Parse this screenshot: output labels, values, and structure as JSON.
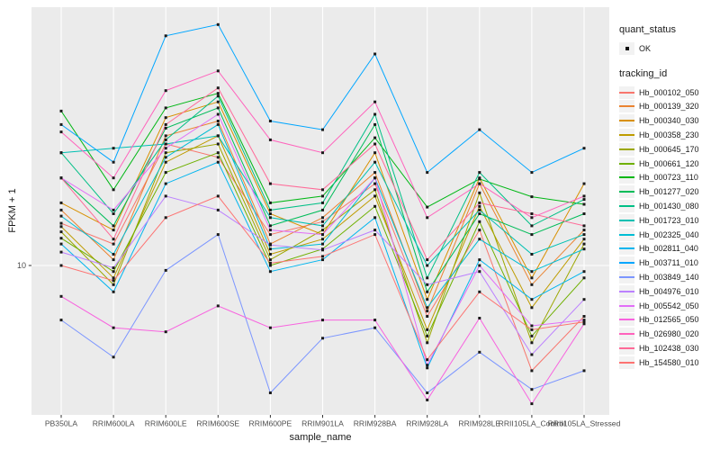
{
  "figure": {
    "background": "#FFFFFF",
    "panel_background": "#EBEBEB",
    "gridline_color": "#FFFFFF",
    "tick_color": "#333333",
    "tick_label_color": "#4D4D4D",
    "point_color": "#1A1A1A"
  },
  "legend": {
    "quant_status": {
      "title": "quant_status",
      "items": [
        {
          "label": "OK",
          "icon": "black-point-icon"
        }
      ]
    },
    "tracking_id": {
      "title": "tracking_id"
    }
  },
  "chart_data": {
    "type": "line",
    "title": "",
    "xlabel": "sample_name",
    "ylabel": "FPKM + 1",
    "y_scale": "log10",
    "y_tick_label": "10",
    "y_tick_value": 10,
    "ylim": [
      2.8,
      90
    ],
    "grid": "white-on-gray, vertical major per category, horizontal at 10",
    "legend_position": "right",
    "point_shape": "small black square (quant_status OK)",
    "categories": [
      "PB350LA",
      "RRIM600LA",
      "RRIM600LE",
      "RRIM600SE",
      "RRIM600PE",
      "RRIM901LA",
      "RRIM928BA",
      "RRIM928LA",
      "RRIM928LE",
      "RRII105LA_Control",
      "RRII105LA_Stressed"
    ],
    "series": [
      {
        "name": "Hb_000102_050",
        "color": "#F8766D",
        "values": [
          14.3,
          12.0,
          28,
          25,
          13,
          14.5,
          20,
          6.5,
          13.5,
          4.1,
          6.5
        ]
      },
      {
        "name": "Hb_000139_320",
        "color": "#EA8331",
        "values": [
          16,
          10.5,
          30,
          34,
          12,
          15,
          22,
          6.8,
          20,
          8.5,
          13.5
        ]
      },
      {
        "name": "Hb_000340_030",
        "color": "#D89000",
        "values": [
          17,
          13.5,
          35,
          40,
          15.5,
          13,
          26,
          7.5,
          21,
          9.0,
          20
        ]
      },
      {
        "name": "Hb_000358_230",
        "color": "#BE9C00",
        "values": [
          13.9,
          9.0,
          24,
          30,
          11,
          12.5,
          18,
          5.8,
          16.5,
          7.0,
          12.5
        ]
      },
      {
        "name": "Hb_000645_170",
        "color": "#9CA700",
        "values": [
          13.3,
          8.5,
          26,
          28,
          10.5,
          13.5,
          19,
          5.2,
          18.5,
          5.2,
          12.0
        ]
      },
      {
        "name": "Hb_000661_120",
        "color": "#6FB000",
        "values": [
          12.6,
          9.5,
          22,
          26,
          10,
          11.5,
          16.5,
          5.5,
          14.5,
          5.5,
          9.0
        ]
      },
      {
        "name": "Hb_000723_110",
        "color": "#00B715",
        "values": [
          37,
          19,
          38,
          43,
          17,
          18,
          29.5,
          16.4,
          20.8,
          17.9,
          16.8
        ]
      },
      {
        "name": "Hb_001277_020",
        "color": "#00BC59",
        "values": [
          21,
          14,
          32,
          38,
          14,
          16,
          33,
          8.0,
          15.5,
          13.0,
          15.5
        ]
      },
      {
        "name": "Hb_001430_080",
        "color": "#00BF86",
        "values": [
          26,
          15.5,
          29,
          42,
          16,
          17,
          36,
          9.0,
          22,
          14.0,
          17.5
        ]
      },
      {
        "name": "Hb_001723_010",
        "color": "#00C0B2",
        "values": [
          26,
          27,
          28,
          30,
          15,
          14,
          24,
          10,
          16,
          11,
          13
        ]
      },
      {
        "name": "Hb_002325_040",
        "color": "#00BDD4",
        "values": [
          15.2,
          11,
          25,
          33,
          11.5,
          12,
          21,
          7.0,
          12.5,
          9.5,
          11.5
        ]
      },
      {
        "name": "Hb_002811_040",
        "color": "#00B5EE",
        "values": [
          12,
          8.0,
          20,
          24,
          9.5,
          10.5,
          15,
          4.2,
          10.5,
          7.5,
          9.5
        ]
      },
      {
        "name": "Hb_003711_010",
        "color": "#00A6FF",
        "values": [
          33,
          24,
          70,
          77,
          34,
          31.6,
          60,
          22,
          31.6,
          22,
          27
        ]
      },
      {
        "name": "Hb_003849_140",
        "color": "#7C96FF",
        "values": [
          6.3,
          4.6,
          9.6,
          13,
          3.4,
          5.4,
          5.9,
          3.4,
          4.8,
          3.5,
          4.1
        ]
      },
      {
        "name": "Hb_004976_010",
        "color": "#BC81FF",
        "values": [
          11.2,
          9.8,
          18,
          16,
          11.9,
          11.4,
          13.5,
          8.5,
          9.5,
          4.7,
          7.5
        ]
      },
      {
        "name": "Hb_005542_050",
        "color": "#E26EF7",
        "values": [
          21,
          16,
          27,
          36,
          13.5,
          13,
          21,
          4.3,
          10,
          6.0,
          6.3
        ]
      },
      {
        "name": "Hb_012565_050",
        "color": "#F863DF",
        "values": [
          7.7,
          5.9,
          5.7,
          7.1,
          5.9,
          6.3,
          6.3,
          3.2,
          6.4,
          3.1,
          6.1
        ]
      },
      {
        "name": "Hb_026980_020",
        "color": "#FF62BC",
        "values": [
          31,
          21,
          44,
          52,
          29,
          26,
          40,
          15,
          20,
          15,
          18
        ]
      },
      {
        "name": "Hb_102438_030",
        "color": "#FF6A98",
        "values": [
          21,
          12.5,
          33,
          45,
          20,
          19,
          28,
          10.5,
          17,
          15.5,
          14
        ]
      },
      {
        "name": "Hb_154580_010",
        "color": "#FD7372",
        "values": [
          10,
          8.8,
          15,
          18,
          10.2,
          10.8,
          13,
          4.5,
          8.0,
          5.8,
          6.2
        ]
      }
    ]
  }
}
